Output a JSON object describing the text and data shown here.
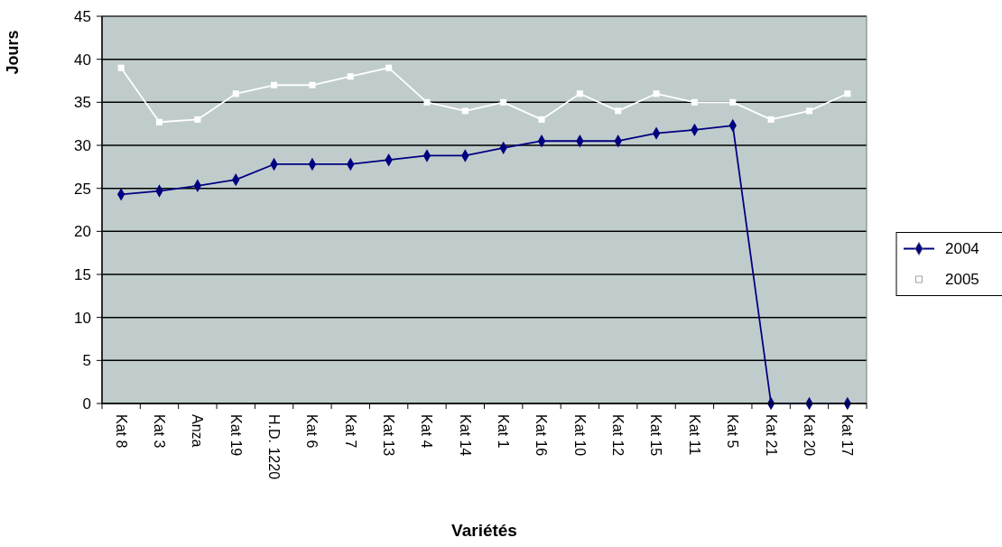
{
  "chart_data": {
    "type": "line",
    "xlabel": "Variétés",
    "ylabel": "Jours",
    "categories": [
      "Kat 8",
      "Kat 3",
      "Anza",
      "Kat 19",
      "H.D. 1220",
      "Kat 6",
      "Kat 7",
      "Kat 13",
      "Kat 4",
      "Kat 14",
      "Kat 1",
      "Kat 16",
      "Kat 10",
      "Kat 12",
      "Kat 15",
      "Kat 11",
      "Kat 5",
      "Kat 21",
      "Kat 20",
      "Kat 17"
    ],
    "series": [
      {
        "name": "2004",
        "color": "#000080",
        "marker": "diamond",
        "values": [
          24.3,
          24.7,
          25.3,
          26,
          27.8,
          27.8,
          27.8,
          28.3,
          28.8,
          28.8,
          29.7,
          30.5,
          30.5,
          30.5,
          31.4,
          31.8,
          32.3,
          0,
          0,
          0
        ]
      },
      {
        "name": "2005",
        "color": "#ffffff",
        "marker": "square",
        "values": [
          39,
          32.7,
          33,
          36,
          37,
          37,
          38,
          39,
          35,
          34,
          35,
          33,
          36,
          34,
          36,
          35,
          35,
          33,
          34,
          36
        ]
      }
    ],
    "ylim": [
      0,
      45
    ],
    "yticks": [
      0,
      5,
      10,
      15,
      20,
      25,
      30,
      35,
      40,
      45
    ],
    "grid": "y",
    "legend": "right"
  }
}
